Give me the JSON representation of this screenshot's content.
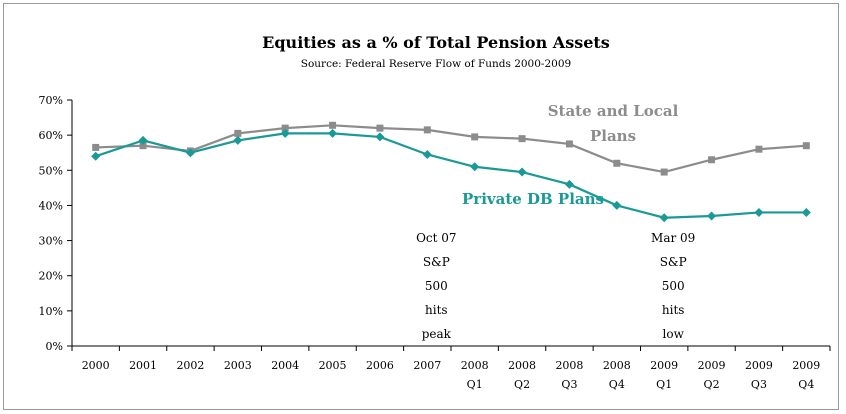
{
  "chart_data": {
    "type": "line",
    "title": "Equities as a % of Total Pension Assets",
    "subtitle": "Source: Federal Reserve Flow of Funds 2000-2009",
    "categories": [
      [
        "2000"
      ],
      [
        "2001"
      ],
      [
        "2002"
      ],
      [
        "2003"
      ],
      [
        "2004"
      ],
      [
        "2005"
      ],
      [
        "2006"
      ],
      [
        "2007"
      ],
      [
        "2008",
        "Q1"
      ],
      [
        "2008",
        "Q2"
      ],
      [
        "2008",
        "Q3"
      ],
      [
        "2008",
        "Q4"
      ],
      [
        "2009",
        "Q1"
      ],
      [
        "2009",
        "Q2"
      ],
      [
        "2009",
        "Q3"
      ],
      [
        "2009",
        "Q4"
      ]
    ],
    "ylim": [
      0,
      70
    ],
    "yticks": [
      "0%",
      "10%",
      "20%",
      "30%",
      "40%",
      "50%",
      "60%",
      "70%"
    ],
    "grid": false,
    "series": [
      {
        "name": "State and Local Plans",
        "label_lines": [
          "State and Local",
          "Plans"
        ],
        "color": "#8c8c8c",
        "marker": "square",
        "values": [
          56.5,
          57,
          55.5,
          60.5,
          62,
          62.8,
          62,
          61.5,
          59.5,
          59,
          57.5,
          52,
          49.5,
          53,
          56,
          57
        ]
      },
      {
        "name": "Private DB Plans",
        "label_lines": [
          "Private DB Plans"
        ],
        "color": "#1a9a96",
        "marker": "diamond",
        "values": [
          54,
          58.5,
          55,
          58.5,
          60.5,
          60.5,
          59.5,
          54.5,
          51,
          49.5,
          46,
          40,
          36.5,
          37,
          38,
          38
        ]
      }
    ],
    "annotations": [
      {
        "at_category_index": 7,
        "lines": [
          "Oct 07",
          "S&P",
          "500",
          "hits",
          "peak"
        ]
      },
      {
        "at_category_index": 12,
        "lines": [
          "Mar 09",
          "S&P",
          "500",
          "hits",
          "low"
        ]
      }
    ]
  }
}
